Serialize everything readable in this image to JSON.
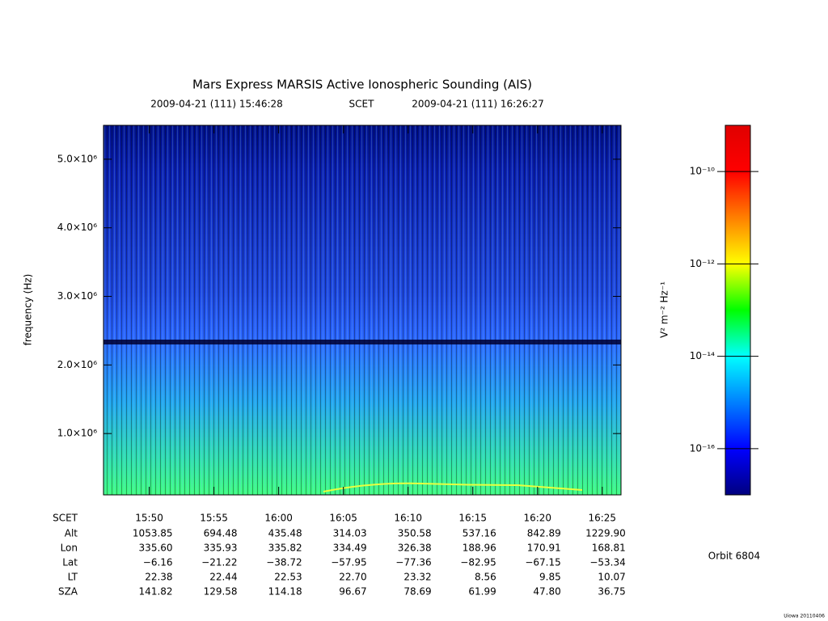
{
  "chart_data": {
    "type": "spectrogram",
    "title": "Mars Express MARSIS Active Ionospheric Sounding (AIS)",
    "time_start": "2009-04-21 (111) 15:46:28",
    "time_system": "SCET",
    "time_end": "2009-04-21 (111) 16:26:27",
    "ylabel": "frequency (Hz)",
    "ylim": [
      106000,
      5494000
    ],
    "yticks": [
      {
        "value": 1000000,
        "label": "1.0×10⁶"
      },
      {
        "value": 2000000,
        "label": "2.0×10⁶"
      },
      {
        "value": 3000000,
        "label": "3.0×10⁶"
      },
      {
        "value": 4000000,
        "label": "4.0×10⁶"
      },
      {
        "value": 5000000,
        "label": "5.0×10⁶"
      }
    ],
    "colorbar": {
      "label": "V² m⁻² Hz⁻¹",
      "log": true,
      "lim": [
        1e-17,
        1e-09
      ],
      "ticks": [
        {
          "value": 1e-10,
          "label": "10⁻¹⁰"
        },
        {
          "value": 1e-12,
          "label": "10⁻¹²"
        },
        {
          "value": 1e-14,
          "label": "10⁻¹⁴"
        },
        {
          "value": 1e-16,
          "label": "10⁻¹⁶"
        }
      ]
    },
    "ephemeris": {
      "rows": [
        {
          "name": "SCET",
          "values": [
            "15:50",
            "15:55",
            "16:00",
            "16:05",
            "16:10",
            "16:15",
            "16:20",
            "16:25"
          ]
        },
        {
          "name": "Alt",
          "values": [
            "1053.85",
            "694.48",
            "435.48",
            "314.03",
            "350.58",
            "537.16",
            "842.89",
            "1229.90"
          ]
        },
        {
          "name": "Lon",
          "values": [
            "335.60",
            "335.93",
            "335.82",
            "334.49",
            "326.38",
            "188.96",
            "170.91",
            "168.81"
          ]
        },
        {
          "name": "Lat",
          "values": [
            "−6.16",
            "−21.22",
            "−38.72",
            "−57.95",
            "−77.36",
            "−82.95",
            "−67.15",
            "−53.34"
          ]
        },
        {
          "name": "LT",
          "values": [
            "22.38",
            "22.44",
            "22.53",
            "22.70",
            "23.32",
            "8.56",
            "9.85",
            "10.07"
          ]
        },
        {
          "name": "SZA",
          "values": [
            "141.82",
            "129.58",
            "114.18",
            "96.67",
            "78.69",
            "61.99",
            "47.80",
            "36.75"
          ]
        }
      ]
    },
    "orbit": "Orbit 6804",
    "credit": "Uiowa 20110406"
  }
}
